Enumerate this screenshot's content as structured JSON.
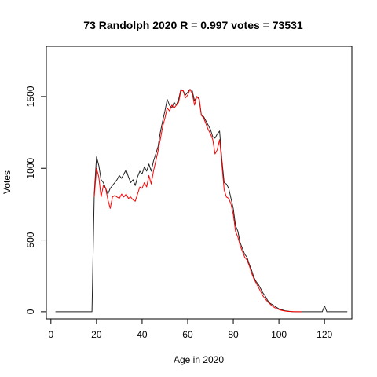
{
  "chart_data": {
    "type": "line",
    "title": "73 Randolph 2020 R = 0.997 votes = 73531",
    "xlabel": "Age in 2020",
    "ylabel": "Votes",
    "xlim": [
      -2,
      132
    ],
    "ylim": [
      -50,
      1850
    ],
    "xticks": [
      0,
      20,
      40,
      60,
      80,
      100,
      120
    ],
    "yticks": [
      0,
      500,
      1000,
      1500
    ],
    "grid": false,
    "legend": "none",
    "series": [
      {
        "color": "#222222",
        "x": [
          2,
          4,
          6,
          8,
          10,
          12,
          14,
          16,
          17,
          18,
          19,
          20,
          21,
          22,
          23,
          24,
          25,
          26,
          27,
          28,
          29,
          30,
          31,
          32,
          33,
          34,
          35,
          36,
          37,
          38,
          39,
          40,
          41,
          42,
          43,
          44,
          45,
          46,
          47,
          48,
          49,
          50,
          51,
          52,
          53,
          54,
          55,
          56,
          57,
          58,
          59,
          60,
          61,
          62,
          63,
          64,
          65,
          66,
          67,
          68,
          69,
          70,
          71,
          72,
          73,
          74,
          75,
          76,
          77,
          78,
          79,
          80,
          81,
          82,
          83,
          84,
          85,
          86,
          87,
          88,
          89,
          90,
          91,
          92,
          93,
          94,
          95,
          96,
          97,
          98,
          99,
          100,
          101,
          102,
          103,
          104,
          105,
          106,
          108,
          110,
          112,
          114,
          116,
          118,
          119,
          120,
          121,
          122,
          124,
          126,
          128,
          130
        ],
        "y": [
          0,
          0,
          0,
          0,
          0,
          0,
          0,
          0,
          0,
          0,
          820,
          1080,
          1020,
          920,
          900,
          860,
          820,
          860,
          880,
          900,
          920,
          950,
          930,
          960,
          990,
          940,
          900,
          920,
          880,
          940,
          980,
          960,
          1010,
          980,
          1030,
          980,
          1050,
          1100,
          1150,
          1250,
          1330,
          1400,
          1480,
          1440,
          1420,
          1460,
          1440,
          1480,
          1550,
          1540,
          1510,
          1530,
          1550,
          1540,
          1470,
          1500,
          1490,
          1370,
          1360,
          1330,
          1300,
          1270,
          1220,
          1210,
          1240,
          1260,
          1060,
          900,
          890,
          860,
          790,
          720,
          600,
          560,
          480,
          440,
          400,
          380,
          330,
          290,
          240,
          210,
          190,
          160,
          130,
          110,
          80,
          60,
          50,
          40,
          30,
          20,
          15,
          10,
          6,
          4,
          2,
          1,
          0,
          0,
          0,
          0,
          0,
          0,
          0,
          40,
          0,
          0,
          0,
          0,
          0,
          0
        ]
      },
      {
        "color": "#ff0000",
        "x": [
          19,
          20,
          21,
          22,
          23,
          24,
          25,
          26,
          27,
          28,
          29,
          30,
          31,
          32,
          33,
          34,
          35,
          36,
          37,
          38,
          39,
          40,
          41,
          42,
          43,
          44,
          45,
          46,
          47,
          48,
          49,
          50,
          51,
          52,
          53,
          54,
          55,
          56,
          57,
          58,
          59,
          60,
          61,
          62,
          63,
          64,
          65,
          66,
          67,
          68,
          69,
          70,
          71,
          72,
          73,
          74,
          75,
          76,
          77,
          78,
          79,
          80,
          81,
          82,
          83,
          84,
          85,
          86,
          87,
          88,
          89,
          90,
          91,
          92,
          93,
          94,
          95,
          96,
          97,
          98,
          99,
          100,
          101,
          102,
          103,
          104,
          106,
          108,
          110
        ],
        "y": [
          800,
          1000,
          940,
          800,
          880,
          860,
          780,
          720,
          800,
          810,
          800,
          790,
          820,
          800,
          820,
          790,
          800,
          780,
          770,
          820,
          870,
          860,
          900,
          870,
          950,
          890,
          980,
          1050,
          1120,
          1200,
          1290,
          1350,
          1420,
          1400,
          1440,
          1420,
          1440,
          1460,
          1540,
          1540,
          1490,
          1510,
          1550,
          1520,
          1440,
          1500,
          1480,
          1370,
          1350,
          1310,
          1270,
          1240,
          1200,
          1100,
          1130,
          1200,
          1030,
          850,
          800,
          790,
          750,
          680,
          560,
          520,
          460,
          420,
          380,
          360,
          320,
          270,
          230,
          200,
          170,
          140,
          110,
          90,
          70,
          55,
          40,
          30,
          22,
          15,
          10,
          7,
          4,
          2,
          1,
          0,
          0
        ]
      }
    ]
  }
}
